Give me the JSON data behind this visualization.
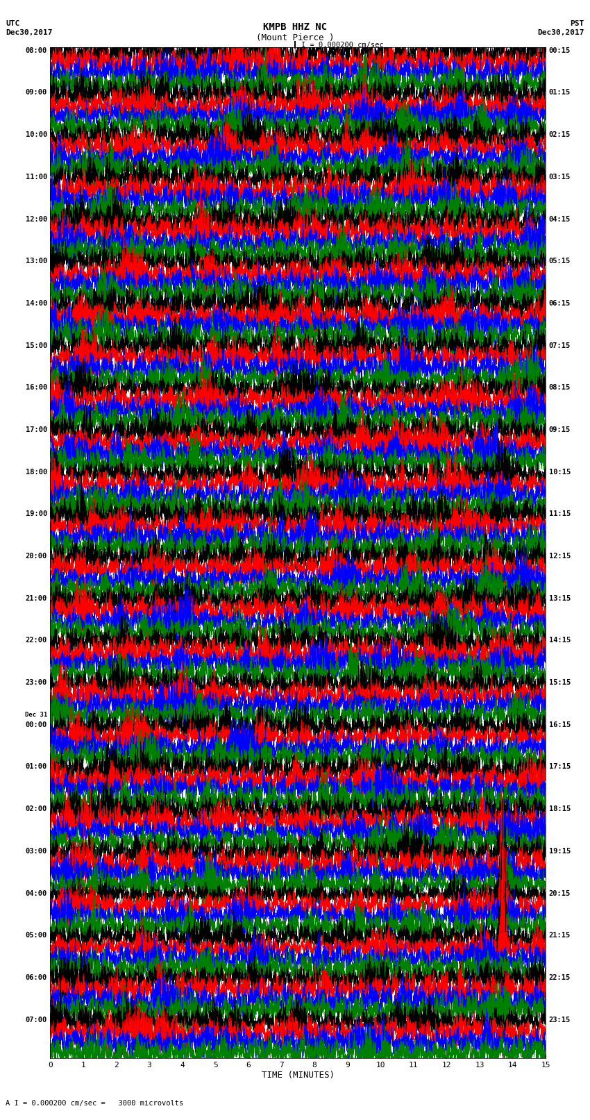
{
  "title_line1": "KMPB HHZ NC",
  "title_line2": "(Mount Pierce )",
  "scale_label": "I = 0.000200 cm/sec",
  "bottom_label": "A I = 0.000200 cm/sec =   3000 microvolts",
  "xlabel": "TIME (MINUTES)",
  "left_date": "Dec30,2017",
  "right_date": "Dec30,2017",
  "left_tz": "UTC",
  "right_tz": "PST",
  "utc_labels": [
    "08:00",
    "09:00",
    "10:00",
    "11:00",
    "12:00",
    "13:00",
    "14:00",
    "15:00",
    "16:00",
    "17:00",
    "18:00",
    "19:00",
    "20:00",
    "21:00",
    "22:00",
    "23:00",
    "00:00",
    "01:00",
    "02:00",
    "03:00",
    "04:00",
    "05:00",
    "06:00",
    "07:00"
  ],
  "utc_dec31_row": 16,
  "pst_labels": [
    "00:15",
    "01:15",
    "02:15",
    "03:15",
    "04:15",
    "05:15",
    "06:15",
    "07:15",
    "08:15",
    "09:15",
    "10:15",
    "11:15",
    "12:15",
    "13:15",
    "14:15",
    "15:15",
    "16:15",
    "17:15",
    "18:15",
    "19:15",
    "20:15",
    "21:15",
    "22:15",
    "23:15"
  ],
  "n_rows": 24,
  "traces_per_row": 4,
  "n_minutes": 15,
  "samples_per_minute": 600,
  "spike_rows": [
    20,
    21
  ],
  "spike_minute": 13.7,
  "bg_color": "#ffffff",
  "trace_colors": [
    "#000000",
    "#ff0000",
    "#0000ff",
    "#008000"
  ],
  "lw": 0.3
}
